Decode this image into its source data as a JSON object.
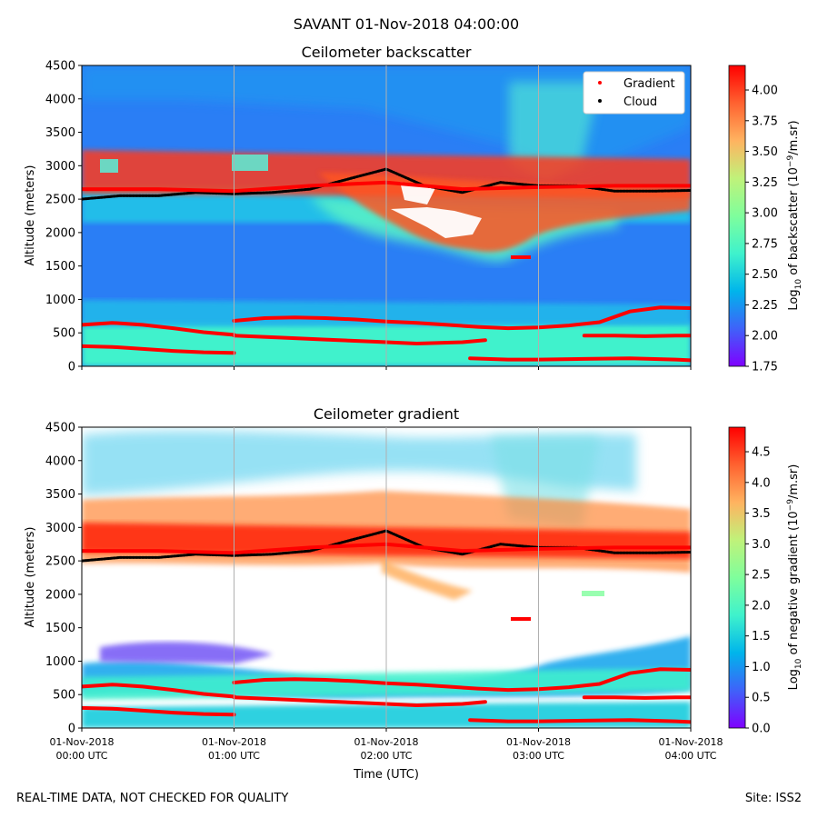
{
  "title": "SAVANT 01-Nov-2018 04:00:00",
  "footer_left": "REAL-TIME DATA, NOT CHECKED FOR QUALITY",
  "footer_right": "Site: ISS2",
  "colors": {
    "gradient_marker": "#ff0000",
    "cloud_marker": "#000000",
    "colormap": [
      "#7f00ff",
      "#3f62f9",
      "#00b5eb",
      "#3ff2cc",
      "#7ffe9c",
      "#c0f27a",
      "#ffb360",
      "#ff6230",
      "#ff0000"
    ]
  },
  "chart_data": [
    {
      "type": "heatmap",
      "title": "Ceilometer backscatter",
      "ylabel": "Altitude (meters)",
      "xlabel": "",
      "ylim": [
        0,
        4500
      ],
      "yticks": [
        0,
        500,
        1000,
        1500,
        2000,
        2500,
        3000,
        3500,
        4000,
        4500
      ],
      "x_range": [
        "01-Nov-2018 00:00 UTC",
        "01-Nov-2018 04:00 UTC"
      ],
      "grid": "vertical lines at each hour",
      "legend": {
        "placement": "top-right",
        "entries": [
          {
            "name": "Gradient",
            "color": "#ff0000"
          },
          {
            "name": "Cloud",
            "color": "#000000"
          }
        ]
      },
      "colorbar": {
        "label_prefix": "Log",
        "label_sub": "10",
        "label_mid": " of backscatter (10",
        "label_sup": "−9",
        "label_suffix": "/m.sr)",
        "range": [
          1.75,
          4.2
        ],
        "ticks": [
          "1.75",
          "2.00",
          "2.25",
          "2.50",
          "2.75",
          "3.00",
          "3.25",
          "3.50",
          "3.75",
          "4.00"
        ]
      },
      "layers": [
        {
          "name": "Cloud base",
          "x": [
            0,
            0.25,
            0.5,
            0.75,
            1.0,
            1.25,
            1.5,
            1.75,
            2.0,
            2.25,
            2.5,
            2.75,
            3.0,
            3.25,
            3.5,
            3.75,
            4.0
          ],
          "y": [
            2500,
            2550,
            2550,
            2600,
            2580,
            2600,
            2650,
            2800,
            2950,
            2700,
            2600,
            2750,
            2700,
            2700,
            2620,
            2620,
            2630
          ]
        },
        {
          "name": "Gradient top",
          "x": [
            0,
            0.5,
            1.0,
            1.5,
            2.0,
            2.5,
            3.0,
            3.5,
            4.0
          ],
          "y": [
            2650,
            2650,
            2620,
            2700,
            2750,
            2650,
            2680,
            2700,
            2700
          ]
        },
        {
          "name": "Gradient 600 m layer",
          "x": [
            0,
            0.2,
            0.4,
            0.6,
            0.8,
            1.0
          ],
          "y": [
            620,
            650,
            620,
            570,
            510,
            470
          ]
        },
        {
          "name": "Gradient 700 m layer",
          "x": [
            1.0,
            1.2,
            1.4,
            1.6,
            1.8,
            2.0,
            2.2,
            2.4,
            2.6,
            2.8,
            3.0,
            3.2,
            3.4,
            3.6,
            3.8,
            4.0
          ],
          "y": [
            680,
            720,
            730,
            720,
            700,
            670,
            650,
            620,
            590,
            570,
            580,
            610,
            660,
            820,
            880,
            870
          ]
        },
        {
          "name": "Gradient 300 m layer",
          "x": [
            0,
            0.2,
            0.4,
            0.6,
            0.8,
            1.0
          ],
          "y": [
            300,
            290,
            260,
            230,
            210,
            200
          ]
        },
        {
          "name": "Gradient 450 m layer",
          "x": [
            1.0,
            1.3,
            1.6,
            1.9,
            2.2,
            2.5,
            2.65
          ],
          "y": [
            460,
            430,
            400,
            370,
            340,
            360,
            390
          ]
        },
        {
          "name": "Gradient 100 m layer",
          "x": [
            2.55,
            2.8,
            3.0,
            3.3,
            3.6,
            3.9,
            4.0
          ],
          "y": [
            120,
            100,
            100,
            110,
            120,
            100,
            90
          ]
        },
        {
          "name": "Gradient 450 m right layer",
          "x": [
            3.3,
            3.5,
            3.7,
            3.9,
            4.0
          ],
          "y": [
            460,
            460,
            450,
            460,
            460
          ]
        }
      ]
    },
    {
      "type": "heatmap",
      "title": "Ceilometer gradient",
      "ylabel": "Altitude (meters)",
      "xlabel": "Time (UTC)",
      "ylim": [
        0,
        4500
      ],
      "yticks": [
        0,
        500,
        1000,
        1500,
        2000,
        2500,
        3000,
        3500,
        4000,
        4500
      ],
      "xticks": [
        {
          "date": "01-Nov-2018",
          "time": "00:00 UTC"
        },
        {
          "date": "01-Nov-2018",
          "time": "01:00 UTC"
        },
        {
          "date": "01-Nov-2018",
          "time": "02:00 UTC"
        },
        {
          "date": "01-Nov-2018",
          "time": "03:00 UTC"
        },
        {
          "date": "01-Nov-2018",
          "time": "04:00 UTC"
        }
      ],
      "grid": "vertical lines at each hour",
      "colorbar": {
        "label_prefix": "Log",
        "label_sub": "10",
        "label_mid": " of negative gradient (10",
        "label_sup": "−9",
        "label_suffix": "/m.sr)",
        "range": [
          0,
          4.9
        ],
        "ticks": [
          "0.0",
          "0.5",
          "1.0",
          "1.5",
          "2.0",
          "2.5",
          "3.0",
          "3.5",
          "4.0",
          "4.5"
        ]
      }
    }
  ]
}
